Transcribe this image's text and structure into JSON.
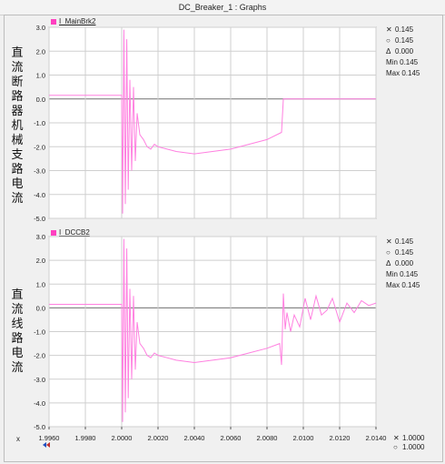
{
  "window": {
    "title": "DC_Breaker_1 : Graphs"
  },
  "colors": {
    "trace": "#ff80e0",
    "marker": "#ff40c0",
    "grid": "#cfcfcf",
    "plot_bg": "#ffffff"
  },
  "panels": [
    {
      "ylabel": "直流断路器机械支路电流",
      "curve_name": "I_MainBrk2",
      "readout": {
        "x": "0.145",
        "o": "0.145",
        "delta": "0.000",
        "min": "Min 0.145",
        "max": "Max 0.145"
      },
      "y_ticks": [
        "3.0",
        "2.0",
        "1.0",
        "0.0",
        "-1.0",
        "-2.0",
        "-3.0",
        "-4.0",
        "-5.0"
      ]
    },
    {
      "ylabel": "直流线路电流",
      "curve_name": "I_DCCB2",
      "readout": {
        "x": "0.145",
        "o": "0.145",
        "delta": "0.000",
        "min": "Min 0.145",
        "max": "Max 0.145"
      },
      "y_ticks": [
        "3.0",
        "2.0",
        "1.0",
        "0.0",
        "-1.0",
        "-2.0",
        "-3.0",
        "-4.0",
        "-5.0"
      ]
    }
  ],
  "x_axis": {
    "letter": "x",
    "ticks": [
      "1.9960",
      "1.9980",
      "2.0000",
      "2.0020",
      "2.0040",
      "2.0060",
      "2.0080",
      "2.0100",
      "2.0120",
      "2.0140"
    ],
    "readout_x": "1.0000",
    "readout_o": "1.0000"
  },
  "chart_data": [
    {
      "type": "line",
      "xlim": [
        1.996,
        2.014
      ],
      "ylim": [
        -5.0,
        3.0
      ],
      "series": [
        {
          "name": "I_MainBrk2",
          "x": [
            1.996,
            2.0,
            2.00005,
            2.00012,
            2.0002,
            2.00028,
            2.00036,
            2.00045,
            2.00055,
            2.00065,
            2.00075,
            2.00085,
            2.001,
            2.0012,
            2.0014,
            2.0016,
            2.0018,
            2.002,
            2.0025,
            2.003,
            2.004,
            2.005,
            2.006,
            2.007,
            2.008,
            2.0088,
            2.0088,
            2.0089,
            2.014
          ],
          "y": [
            0.15,
            0.15,
            -4.8,
            2.9,
            -4.4,
            2.5,
            -3.8,
            0.8,
            -3.0,
            0.5,
            -2.6,
            -0.6,
            -1.5,
            -1.7,
            -2.0,
            -2.1,
            -1.9,
            -2.0,
            -2.1,
            -2.2,
            -2.3,
            -2.2,
            -2.1,
            -1.9,
            -1.7,
            -1.4,
            -1.4,
            0.0,
            0.0
          ]
        }
      ]
    },
    {
      "type": "line",
      "xlim": [
        1.996,
        2.014
      ],
      "ylim": [
        -5.0,
        3.0
      ],
      "series": [
        {
          "name": "I_DCCB2",
          "x": [
            1.996,
            2.0,
            2.00005,
            2.00012,
            2.0002,
            2.00028,
            2.00036,
            2.00045,
            2.00055,
            2.00065,
            2.00075,
            2.00085,
            2.001,
            2.0012,
            2.0014,
            2.0016,
            2.0018,
            2.002,
            2.0025,
            2.003,
            2.004,
            2.005,
            2.006,
            2.007,
            2.008,
            2.0087,
            2.0088,
            2.0089,
            2.009,
            2.0091,
            2.0093,
            2.0095,
            2.0098,
            2.0101,
            2.0104,
            2.0107,
            2.011,
            2.0113,
            2.0116,
            2.012,
            2.0124,
            2.0128,
            2.0132,
            2.0136,
            2.014
          ],
          "y": [
            0.15,
            0.15,
            -4.8,
            2.9,
            -4.4,
            2.5,
            -3.8,
            0.8,
            -3.0,
            0.5,
            -2.6,
            -0.6,
            -1.5,
            -1.7,
            -2.0,
            -2.1,
            -1.9,
            -2.0,
            -2.1,
            -2.2,
            -2.3,
            -2.2,
            -2.1,
            -1.9,
            -1.7,
            -1.5,
            -2.4,
            0.6,
            -0.9,
            -0.2,
            -1.0,
            -0.3,
            -0.8,
            0.4,
            -0.5,
            0.5,
            -0.3,
            -0.1,
            0.4,
            -0.6,
            0.2,
            -0.2,
            0.3,
            0.1,
            0.2
          ]
        }
      ]
    }
  ]
}
